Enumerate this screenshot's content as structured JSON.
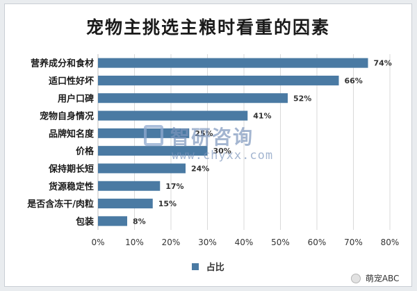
{
  "chart_data": {
    "type": "bar",
    "orientation": "horizontal",
    "title": "宠物主挑选主粮时看重的因素",
    "categories": [
      "营养成分和食材",
      "适口性好坏",
      "用户口碑",
      "宠物自身情况",
      "品牌知名度",
      "价格",
      "保持期长短",
      "货源稳定性",
      "是否含冻干/肉粒",
      "包装"
    ],
    "series": [
      {
        "name": "占比",
        "values": [
          74,
          66,
          52,
          41,
          25,
          30,
          24,
          17,
          15,
          8
        ]
      }
    ],
    "value_labels": [
      "74%",
      "66%",
      "52%",
      "41%",
      "25%",
      "30%",
      "24%",
      "17%",
      "15%",
      "8%"
    ],
    "xlim": [
      0,
      80
    ],
    "xticks": [
      "0%",
      "10%",
      "20%",
      "30%",
      "40%",
      "50%",
      "60%",
      "70%",
      "80%"
    ],
    "xtick_values": [
      0,
      10,
      20,
      30,
      40,
      50,
      60,
      70,
      80
    ],
    "grid": true,
    "legend_position": "bottom",
    "bar_color": "#4a7aa3"
  },
  "watermark": {
    "text": "智研咨询",
    "url": "www.chyxx.com",
    "color": "#7d96bd"
  },
  "badge": {
    "icon": "wechat-icon",
    "text": "萌宠ABC"
  }
}
